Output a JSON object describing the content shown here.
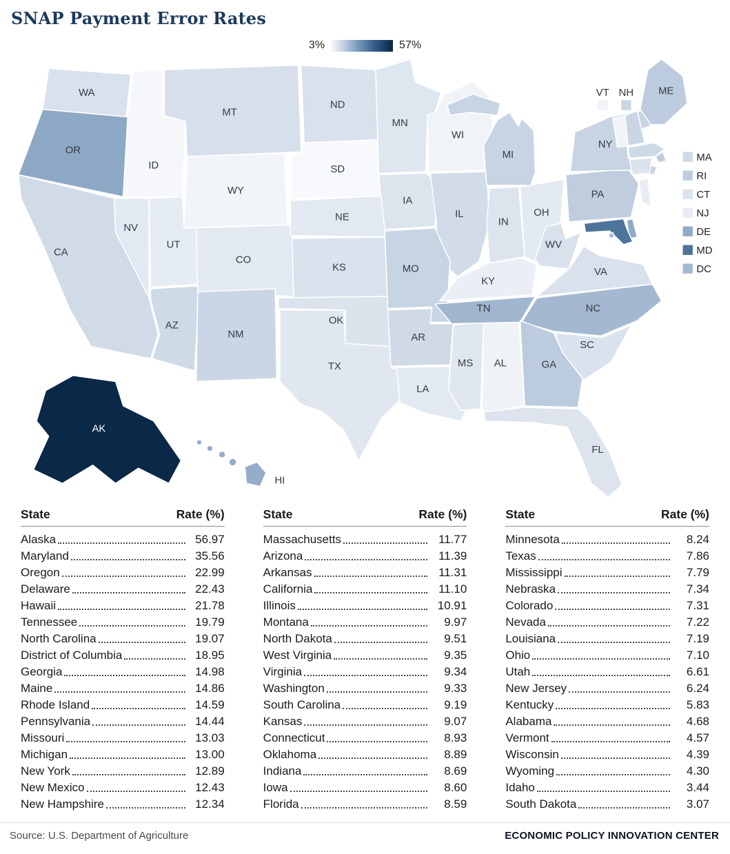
{
  "chart_data": {
    "type": "heatmap",
    "subtype": "us-choropleth",
    "title": "SNAP Payment Error Rates",
    "legend": {
      "min": 3,
      "max": 57,
      "min_label": "3%",
      "max_label": "57%"
    },
    "value_label": "Rate (%)",
    "series": [
      {
        "state": "Alaska",
        "abbr": "AK",
        "value": 56.97
      },
      {
        "state": "Maryland",
        "abbr": "MD",
        "value": 35.56
      },
      {
        "state": "Oregon",
        "abbr": "OR",
        "value": 22.99
      },
      {
        "state": "Delaware",
        "abbr": "DE",
        "value": 22.43
      },
      {
        "state": "Hawaii",
        "abbr": "HI",
        "value": 21.78
      },
      {
        "state": "Tennessee",
        "abbr": "TN",
        "value": 19.79
      },
      {
        "state": "North Carolina",
        "abbr": "NC",
        "value": 19.07
      },
      {
        "state": "District of Columbia",
        "abbr": "DC",
        "value": 18.95
      },
      {
        "state": "Georgia",
        "abbr": "GA",
        "value": 14.98
      },
      {
        "state": "Maine",
        "abbr": "ME",
        "value": 14.86
      },
      {
        "state": "Rhode Island",
        "abbr": "RI",
        "value": 14.59
      },
      {
        "state": "Pennsylvania",
        "abbr": "PA",
        "value": 14.44
      },
      {
        "state": "Missouri",
        "abbr": "MO",
        "value": 13.03
      },
      {
        "state": "Michigan",
        "abbr": "MI",
        "value": 13.0
      },
      {
        "state": "New York",
        "abbr": "NY",
        "value": 12.89
      },
      {
        "state": "New Mexico",
        "abbr": "NM",
        "value": 12.43
      },
      {
        "state": "New Hampshire",
        "abbr": "NH",
        "value": 12.34
      },
      {
        "state": "Massachusetts",
        "abbr": "MA",
        "value": 11.77
      },
      {
        "state": "Arizona",
        "abbr": "AZ",
        "value": 11.39
      },
      {
        "state": "Arkansas",
        "abbr": "AR",
        "value": 11.31
      },
      {
        "state": "California",
        "abbr": "CA",
        "value": 11.1
      },
      {
        "state": "Illinois",
        "abbr": "IL",
        "value": 10.91
      },
      {
        "state": "Montana",
        "abbr": "MT",
        "value": 9.97
      },
      {
        "state": "North Dakota",
        "abbr": "ND",
        "value": 9.51
      },
      {
        "state": "West Virginia",
        "abbr": "WV",
        "value": 9.35
      },
      {
        "state": "Virginia",
        "abbr": "VA",
        "value": 9.34
      },
      {
        "state": "Washington",
        "abbr": "WA",
        "value": 9.33
      },
      {
        "state": "South Carolina",
        "abbr": "SC",
        "value": 9.19
      },
      {
        "state": "Kansas",
        "abbr": "KS",
        "value": 9.07
      },
      {
        "state": "Connecticut",
        "abbr": "CT",
        "value": 8.93
      },
      {
        "state": "Oklahoma",
        "abbr": "OK",
        "value": 8.89
      },
      {
        "state": "Indiana",
        "abbr": "IN",
        "value": 8.69
      },
      {
        "state": "Iowa",
        "abbr": "IA",
        "value": 8.6
      },
      {
        "state": "Florida",
        "abbr": "FL",
        "value": 8.59
      },
      {
        "state": "Minnesota",
        "abbr": "MN",
        "value": 8.24
      },
      {
        "state": "Texas",
        "abbr": "TX",
        "value": 7.86
      },
      {
        "state": "Mississippi",
        "abbr": "MS",
        "value": 7.79
      },
      {
        "state": "Nebraska",
        "abbr": "NE",
        "value": 7.34
      },
      {
        "state": "Colorado",
        "abbr": "CO",
        "value": 7.31
      },
      {
        "state": "Nevada",
        "abbr": "NV",
        "value": 7.22
      },
      {
        "state": "Louisiana",
        "abbr": "LA",
        "value": 7.19
      },
      {
        "state": "Ohio",
        "abbr": "OH",
        "value": 7.1
      },
      {
        "state": "Utah",
        "abbr": "UT",
        "value": 6.61
      },
      {
        "state": "New Jersey",
        "abbr": "NJ",
        "value": 6.24
      },
      {
        "state": "Kentucky",
        "abbr": "KY",
        "value": 5.83
      },
      {
        "state": "Alabama",
        "abbr": "AL",
        "value": 4.68
      },
      {
        "state": "Vermont",
        "abbr": "VT",
        "value": 4.57
      },
      {
        "state": "Wisconsin",
        "abbr": "WI",
        "value": 4.39
      },
      {
        "state": "Wyoming",
        "abbr": "WY",
        "value": 4.3
      },
      {
        "state": "Idaho",
        "abbr": "ID",
        "value": 3.44
      },
      {
        "state": "South Dakota",
        "abbr": "SD",
        "value": 3.07
      }
    ]
  },
  "colors": {
    "ramp": [
      "#f7f9fc",
      "#c9d5e4",
      "#7d9cbd",
      "#2f5a84",
      "#0a2848"
    ],
    "stops": [
      0,
      0.18,
      0.42,
      0.72,
      1
    ],
    "domain": [
      3,
      57
    ],
    "label_dark": "#333b45",
    "label_light": "#ffffff",
    "white_label_threshold": 32
  },
  "map": {
    "small_state_list": [
      "MA",
      "RI",
      "CT",
      "NJ",
      "DE",
      "MD",
      "DC"
    ],
    "mini_legend": [
      "VT",
      "NH"
    ]
  },
  "table": {
    "state_header": "State",
    "rate_header": "Rate (%)",
    "columns": 3,
    "rows_per_column": 17
  },
  "footer": {
    "source": "Source: U.S. Department of Agriculture",
    "org": "ECONOMIC POLICY INNOVATION CENTER"
  }
}
